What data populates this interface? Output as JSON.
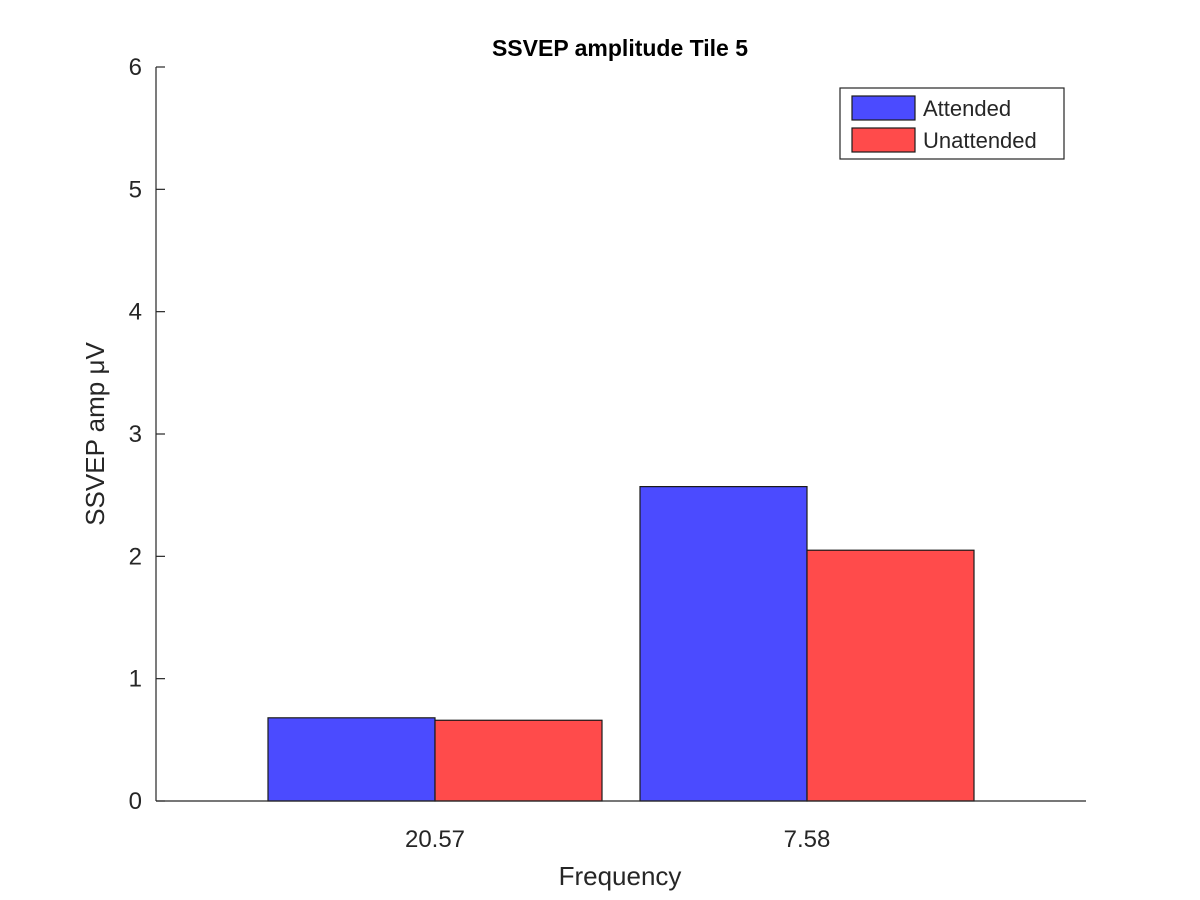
{
  "chart_data": {
    "type": "bar",
    "title": "SSVEP amplitude Tile 5",
    "xlabel": "Frequency",
    "ylabel": "SSVEP amp μV",
    "categories": [
      "20.57",
      "7.58"
    ],
    "series": [
      {
        "name": "Attended",
        "values": [
          0.68,
          2.57
        ],
        "color": "#4b4bff"
      },
      {
        "name": "Unattended",
        "values": [
          0.66,
          2.05
        ],
        "color": "#ff4b4b"
      }
    ],
    "ylim": [
      0,
      6
    ],
    "yticks": [
      "0",
      "1",
      "2",
      "3",
      "4",
      "5",
      "6"
    ],
    "grid": false,
    "legend_position": "top-right"
  }
}
